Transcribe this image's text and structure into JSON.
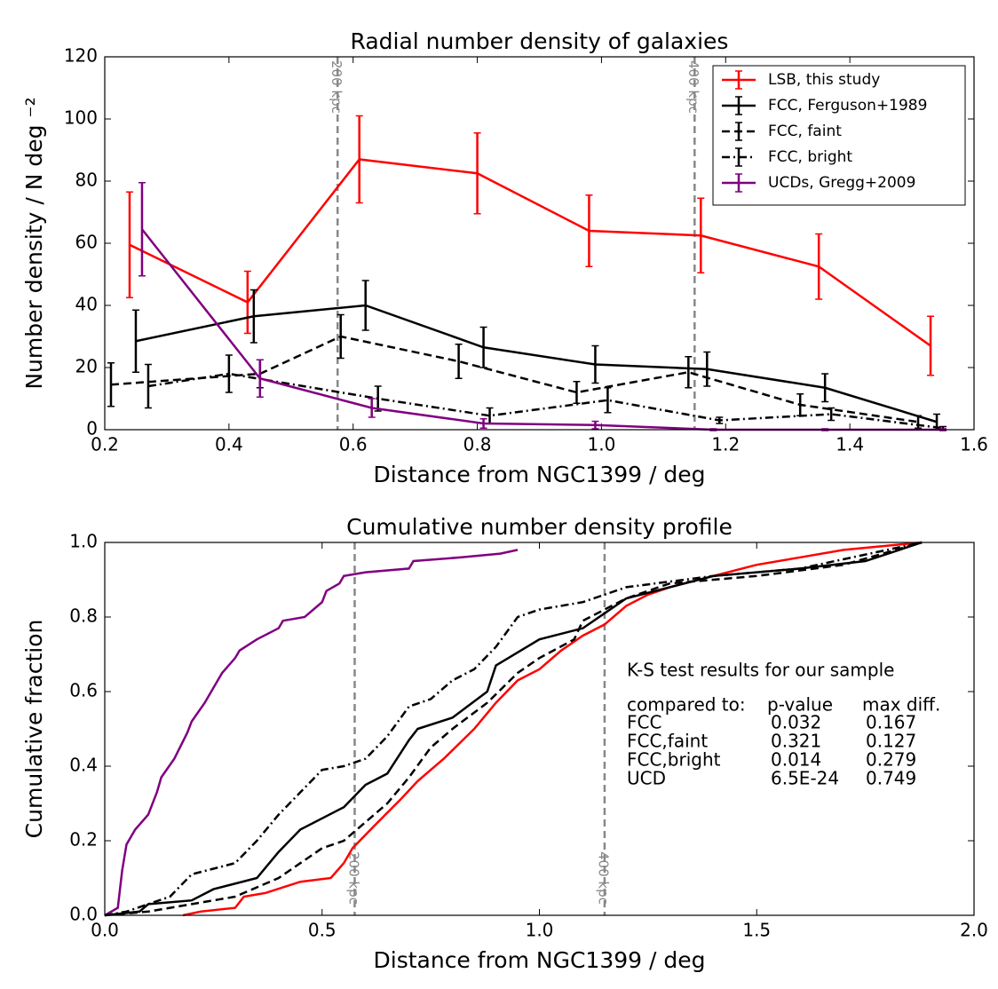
{
  "chart_data": [
    {
      "type": "line",
      "title": "Radial number density of galaxies",
      "xlabel": "Distance from NGC1399 / deg",
      "ylabel": "Number density / N deg ⁻²",
      "xlim": [
        0.2,
        1.6
      ],
      "xticks": [
        0.2,
        0.4,
        0.6,
        0.8,
        {
          "value": 1,
          "label": "1.0"
        },
        1.2,
        1.4,
        1.6
      ],
      "ylim": [
        0,
        120
      ],
      "yticks": [
        0,
        20,
        40,
        60,
        80,
        100,
        120
      ],
      "legend": "upper right",
      "vlines": [
        {
          "x": 0.575,
          "label": "200 kpc"
        },
        {
          "x": 1.15,
          "label": "400 kpc"
        }
      ],
      "series": [
        {
          "name": "LSB, this study",
          "color": "#ff0000",
          "linestyle": "solid",
          "x": [
            0.24,
            0.43,
            0.61,
            0.8,
            0.98,
            1.16,
            1.35,
            1.53
          ],
          "values": [
            59.5,
            41,
            87,
            82.5,
            64,
            62.5,
            52.5,
            27
          ],
          "errors": [
            17,
            10,
            14,
            13,
            11.5,
            12,
            10.5,
            9.5
          ]
        },
        {
          "name": "FCC, Ferguson+1989",
          "color": "#000000",
          "linestyle": "solid",
          "x": [
            0.25,
            0.44,
            0.62,
            0.81,
            0.99,
            1.17,
            1.36,
            1.54
          ],
          "values": [
            28.5,
            36.5,
            40,
            26.5,
            21,
            19.5,
            13.5,
            2.5
          ],
          "errors": [
            10,
            8.5,
            8,
            6.5,
            6,
            5.5,
            4.5,
            2.5
          ]
        },
        {
          "name": "FCC, faint",
          "color": "#000000",
          "linestyle": "dashed",
          "x": [
            0.21,
            0.45,
            0.58,
            0.77,
            0.96,
            1.14,
            1.32,
            1.51
          ],
          "values": [
            14.5,
            18,
            30,
            22,
            12,
            18.5,
            8,
            2.5
          ],
          "errors": [
            7,
            4.5,
            7,
            5.5,
            3.5,
            5,
            3.5,
            2
          ]
        },
        {
          "name": "FCC, bright",
          "color": "#000000",
          "linestyle": "dashdot",
          "x": [
            0.27,
            0.4,
            0.64,
            0.82,
            1.01,
            1.19,
            1.37,
            1.55
          ],
          "values": [
            14,
            18,
            10,
            4.5,
            9.5,
            3,
            5,
            0.5
          ],
          "errors": [
            7,
            6,
            4,
            2.5,
            4,
            1,
            2,
            0.5
          ]
        },
        {
          "name": "UCDs, Gregg+2009",
          "color": "#800080",
          "linestyle": "solid",
          "x": [
            0.26,
            0.45,
            0.63,
            0.81,
            0.99,
            1.18,
            1.36,
            1.55
          ],
          "values": [
            64.5,
            16.5,
            7,
            2,
            1.5,
            0,
            0,
            0
          ],
          "errors": [
            15,
            6,
            3,
            1.5,
            1.2,
            0.3,
            0.3,
            0.3
          ]
        }
      ]
    },
    {
      "type": "line",
      "title": "Cumulative number density profile",
      "xlabel": "Distance from NGC1399 / deg",
      "ylabel": "Cumulative fraction",
      "xlim": [
        0,
        2
      ],
      "xticks": [
        {
          "value": 0,
          "label": "0.0"
        },
        0.5,
        {
          "value": 1,
          "label": "1.0"
        },
        1.5,
        {
          "value": 2,
          "label": "2.0"
        }
      ],
      "ylim": [
        0,
        1
      ],
      "yticks": [
        {
          "value": 0,
          "label": "0.0"
        },
        0.2,
        0.4,
        0.6,
        0.8,
        {
          "value": 1,
          "label": "1.0"
        }
      ],
      "vlines": [
        {
          "x": 0.575,
          "label": "200 kpc"
        },
        {
          "x": 1.15,
          "label": "400 kpc"
        }
      ],
      "annotation": {
        "title": "K-S test results for our sample",
        "header": [
          "compared to:",
          "p-value",
          "max diff."
        ],
        "rows": [
          [
            "FCC",
            "0.032",
            "0.167"
          ],
          [
            "FCC,faint",
            "0.321",
            "0.127"
          ],
          [
            "FCC,bright",
            "0.014",
            "0.279"
          ],
          [
            "UCD",
            "6.5E-24",
            "0.749"
          ]
        ]
      },
      "series": [
        {
          "color": "#800080",
          "linestyle": "solid",
          "x": [
            0,
            0.03,
            0.04,
            0.05,
            0.07,
            0.1,
            0.12,
            0.13,
            0.16,
            0.19,
            0.2,
            0.23,
            0.25,
            0.27,
            0.3,
            0.31,
            0.35,
            0.4,
            0.41,
            0.46,
            0.5,
            0.51,
            0.54,
            0.55,
            0.6,
            0.7,
            0.71,
            0.82,
            0.91,
            0.95
          ],
          "values": [
            0,
            0.02,
            0.12,
            0.19,
            0.23,
            0.27,
            0.33,
            0.37,
            0.42,
            0.49,
            0.52,
            0.57,
            0.61,
            0.65,
            0.69,
            0.71,
            0.74,
            0.77,
            0.79,
            0.8,
            0.84,
            0.87,
            0.89,
            0.91,
            0.92,
            0.93,
            0.95,
            0.96,
            0.97,
            0.98
          ]
        },
        {
          "color": "#ff0000",
          "linestyle": "solid",
          "x": [
            0.18,
            0.22,
            0.3,
            0.32,
            0.37,
            0.45,
            0.52,
            0.55,
            0.57,
            0.62,
            0.68,
            0.72,
            0.78,
            0.85,
            0.9,
            0.95,
            1.0,
            1.05,
            1.1,
            1.15,
            1.2,
            1.25,
            1.3,
            1.4,
            1.5,
            1.6,
            1.7,
            1.88
          ],
          "values": [
            0,
            0.01,
            0.02,
            0.05,
            0.06,
            0.09,
            0.1,
            0.14,
            0.18,
            0.24,
            0.31,
            0.36,
            0.42,
            0.5,
            0.57,
            0.63,
            0.66,
            0.71,
            0.75,
            0.78,
            0.83,
            0.86,
            0.88,
            0.91,
            0.94,
            0.96,
            0.98,
            1.0
          ]
        },
        {
          "color": "#000000",
          "linestyle": "solid",
          "x": [
            0,
            0.08,
            0.1,
            0.2,
            0.25,
            0.35,
            0.4,
            0.45,
            0.5,
            0.55,
            0.6,
            0.65,
            0.7,
            0.72,
            0.8,
            0.88,
            0.9,
            1.0,
            1.1,
            1.15,
            1.2,
            1.3,
            1.4,
            1.6,
            1.75,
            1.88
          ],
          "values": [
            0,
            0.01,
            0.03,
            0.04,
            0.07,
            0.1,
            0.17,
            0.23,
            0.26,
            0.29,
            0.35,
            0.38,
            0.47,
            0.5,
            0.53,
            0.6,
            0.67,
            0.74,
            0.77,
            0.81,
            0.85,
            0.88,
            0.91,
            0.93,
            0.95,
            1.0
          ]
        },
        {
          "color": "#000000",
          "linestyle": "dashed",
          "x": [
            0,
            0.1,
            0.2,
            0.3,
            0.4,
            0.45,
            0.5,
            0.55,
            0.6,
            0.65,
            0.7,
            0.75,
            0.8,
            0.88,
            0.95,
            1.0,
            1.08,
            1.1,
            1.2,
            1.3,
            1.5,
            1.7,
            1.88
          ],
          "values": [
            0,
            0.01,
            0.03,
            0.05,
            0.1,
            0.14,
            0.18,
            0.2,
            0.25,
            0.3,
            0.37,
            0.45,
            0.5,
            0.57,
            0.65,
            0.69,
            0.74,
            0.79,
            0.85,
            0.89,
            0.91,
            0.94,
            1.0
          ]
        },
        {
          "color": "#000000",
          "linestyle": "dashdot",
          "x": [
            0,
            0.05,
            0.15,
            0.2,
            0.3,
            0.35,
            0.4,
            0.45,
            0.5,
            0.55,
            0.6,
            0.65,
            0.7,
            0.75,
            0.8,
            0.85,
            0.9,
            0.95,
            1.0,
            1.1,
            1.2,
            1.4,
            1.6,
            1.88
          ],
          "values": [
            0,
            0.01,
            0.05,
            0.11,
            0.14,
            0.2,
            0.27,
            0.33,
            0.39,
            0.4,
            0.42,
            0.48,
            0.56,
            0.58,
            0.63,
            0.66,
            0.72,
            0.8,
            0.82,
            0.84,
            0.88,
            0.91,
            0.93,
            1.0
          ]
        }
      ]
    }
  ]
}
